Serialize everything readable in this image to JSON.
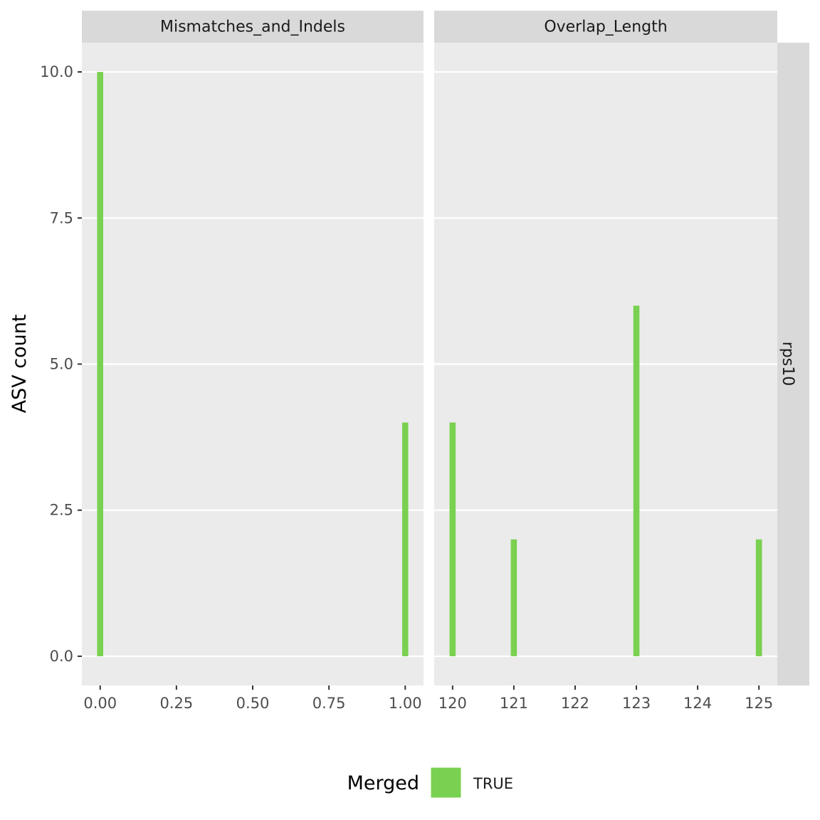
{
  "chart_data": {
    "type": "bar",
    "ylabel": "ASV count",
    "xlabel": "",
    "ylim": [
      -0.5,
      10.5
    ],
    "yticks": [
      0,
      2.5,
      5,
      7.5,
      10
    ],
    "ytick_labels": [
      "0.0",
      "2.5",
      "5.0",
      "7.5",
      "10.0"
    ],
    "row_strip": "rps10",
    "colors": {
      "bar": "#7AD151",
      "panel_bg": "#EBEBEB",
      "strip_bg": "#D9D9D9",
      "grid": "#FFFFFF"
    },
    "legend": {
      "title": "Merged",
      "position": "bottom",
      "entries": [
        {
          "label": "TRUE",
          "color": "#7AD151"
        }
      ]
    },
    "panels": [
      {
        "strip": "Mismatches_and_Indels",
        "xlim": [
          -0.06,
          1.06
        ],
        "xticks": [
          0,
          0.25,
          0.5,
          0.75,
          1
        ],
        "xtick_labels": [
          "0.00",
          "0.25",
          "0.50",
          "0.75",
          "1.00"
        ],
        "x": [
          0,
          1
        ],
        "values": [
          10,
          4
        ],
        "bar_width": 0.02
      },
      {
        "strip": "Overlap_Length",
        "xlim": [
          119.7,
          125.3
        ],
        "xticks": [
          120,
          121,
          122,
          123,
          124,
          125
        ],
        "xtick_labels": [
          "120",
          "121",
          "122",
          "123",
          "124",
          "125"
        ],
        "x": [
          120,
          121,
          123,
          125
        ],
        "values": [
          4,
          2,
          6,
          2
        ],
        "bar_width": 0.1
      }
    ]
  }
}
